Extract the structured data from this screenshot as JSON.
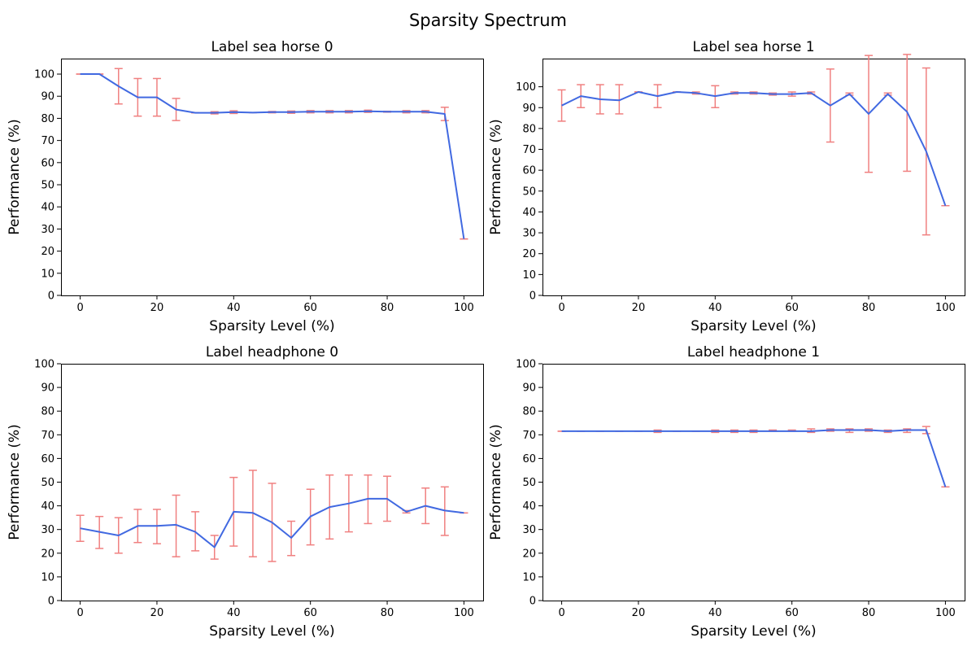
{
  "figure": {
    "title": "Sparsity Spectrum"
  },
  "colors": {
    "line": "#4169e1",
    "error_bars": "#f08080",
    "frame": "#000000"
  },
  "chart_data": [
    {
      "type": "line",
      "title": "Label sea horse 0",
      "xlabel": "Sparsity Level (%)",
      "ylabel": "Performance (%)",
      "xlim": [
        -5,
        105
      ],
      "ylim": [
        0,
        107
      ],
      "xticks": [
        0,
        20,
        40,
        60,
        80,
        100
      ],
      "yticks": [
        0,
        10,
        20,
        30,
        40,
        50,
        60,
        70,
        80,
        90,
        100
      ],
      "grid": false,
      "x": [
        0,
        5,
        10,
        15,
        20,
        25,
        30,
        35,
        40,
        45,
        50,
        55,
        60,
        65,
        70,
        75,
        80,
        85,
        90,
        95,
        100
      ],
      "series": [
        {
          "y": [
            100,
            100,
            94.5,
            89.5,
            89.5,
            84,
            82.5,
            82.5,
            82.8,
            82.6,
            82.8,
            82.8,
            83,
            83,
            83,
            83.2,
            83,
            83,
            83,
            82,
            25.5
          ],
          "err_low": [
            100,
            100,
            86.5,
            81,
            81,
            79,
            82.5,
            82,
            82.2,
            82.6,
            82.5,
            82.3,
            82.5,
            82.5,
            82.5,
            82.7,
            82.8,
            82.5,
            82.5,
            79,
            25.5
          ],
          "err_high": [
            100,
            100,
            102.5,
            98,
            98,
            89,
            82.5,
            83,
            83.4,
            82.6,
            83.1,
            83.3,
            83.5,
            83.5,
            83.5,
            83.7,
            83.2,
            83.5,
            83.5,
            85,
            25.5
          ]
        }
      ]
    },
    {
      "type": "line",
      "title": "Label sea horse 1",
      "xlabel": "Sparsity Level (%)",
      "ylabel": "Performance (%)",
      "xlim": [
        -5,
        105
      ],
      "ylim": [
        0,
        113.5
      ],
      "xticks": [
        0,
        20,
        40,
        60,
        80,
        100
      ],
      "yticks": [
        0,
        10,
        20,
        30,
        40,
        50,
        60,
        70,
        80,
        90,
        100
      ],
      "grid": false,
      "x": [
        0,
        5,
        10,
        15,
        20,
        25,
        30,
        35,
        40,
        45,
        50,
        55,
        60,
        65,
        70,
        75,
        80,
        85,
        90,
        95,
        100
      ],
      "series": [
        {
          "y": [
            91,
            95.5,
            94,
            93.5,
            97.5,
            95.5,
            97.5,
            97,
            95.5,
            97,
            97,
            96.5,
            96.5,
            97,
            91,
            96.5,
            87,
            96.5,
            88,
            69,
            43
          ],
          "err_low": [
            83.5,
            90,
            87,
            87,
            97.5,
            90,
            97.5,
            96.5,
            90,
            96.5,
            96.5,
            96,
            95.5,
            96.5,
            73.5,
            96,
            59,
            96,
            59.5,
            29,
            43
          ],
          "err_high": [
            98.5,
            101,
            101,
            101,
            97.5,
            101,
            97.5,
            97.5,
            100.5,
            97.5,
            97.5,
            97,
            97.5,
            97.5,
            108.5,
            97,
            115,
            97,
            115.5,
            109,
            43
          ]
        }
      ]
    },
    {
      "type": "line",
      "title": "Label headphone 0",
      "xlabel": "Sparsity Level (%)",
      "ylabel": "Performance (%)",
      "xlim": [
        -5,
        105
      ],
      "ylim": [
        0,
        100
      ],
      "xticks": [
        0,
        20,
        40,
        60,
        80,
        100
      ],
      "yticks": [
        0,
        10,
        20,
        30,
        40,
        50,
        60,
        70,
        80,
        90,
        100
      ],
      "grid": false,
      "x": [
        0,
        5,
        10,
        15,
        20,
        25,
        30,
        35,
        40,
        45,
        50,
        55,
        60,
        65,
        70,
        75,
        80,
        85,
        90,
        95,
        100
      ],
      "series": [
        {
          "y": [
            30.5,
            29,
            27.5,
            31.5,
            31.5,
            32,
            29,
            22.5,
            37.5,
            37,
            33,
            26.5,
            35.5,
            39.5,
            41,
            43,
            43,
            37.5,
            40,
            38,
            37
          ],
          "err_low": [
            25,
            22,
            20,
            24.5,
            24,
            18.5,
            21,
            17.5,
            23,
            18.5,
            16.5,
            19,
            23.5,
            26,
            29,
            32.5,
            33.5,
            37,
            32.5,
            27.5,
            37
          ],
          "err_high": [
            36,
            35.5,
            35,
            38.5,
            38.5,
            44.5,
            37.5,
            27.5,
            52,
            55,
            49.5,
            33.5,
            47,
            53,
            53,
            53,
            52.5,
            38,
            47.5,
            48,
            37
          ]
        }
      ]
    },
    {
      "type": "line",
      "title": "Label headphone 1",
      "xlabel": "Sparsity Level (%)",
      "ylabel": "Performance (%)",
      "xlim": [
        -5,
        105
      ],
      "ylim": [
        0,
        100
      ],
      "xticks": [
        0,
        20,
        40,
        60,
        80,
        100
      ],
      "yticks": [
        0,
        10,
        20,
        30,
        40,
        50,
        60,
        70,
        80,
        90,
        100
      ],
      "grid": false,
      "x": [
        0,
        5,
        10,
        15,
        20,
        25,
        30,
        35,
        40,
        45,
        50,
        55,
        60,
        65,
        70,
        75,
        80,
        85,
        90,
        95,
        100
      ],
      "series": [
        {
          "y": [
            71.5,
            71.5,
            71.5,
            71.5,
            71.5,
            71.5,
            71.5,
            71.5,
            71.5,
            71.5,
            71.5,
            71.5,
            71.5,
            71.5,
            72,
            72,
            72,
            71.5,
            72,
            72,
            48
          ],
          "err_low": [
            71.5,
            71.5,
            71.5,
            71.5,
            71.5,
            71,
            71.5,
            71.5,
            71,
            71,
            71,
            71.5,
            71.5,
            71,
            71.5,
            71,
            71.5,
            71,
            71,
            70.5,
            48
          ],
          "err_high": [
            71.5,
            71.5,
            71.5,
            71.5,
            71.5,
            72,
            71.5,
            71.5,
            72,
            72,
            72,
            72,
            72,
            72.5,
            72.5,
            72.5,
            72.5,
            72,
            72.5,
            73.5,
            48
          ]
        }
      ]
    }
  ]
}
